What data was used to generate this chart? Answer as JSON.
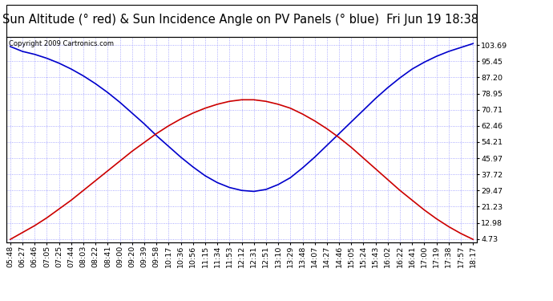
{
  "title": "Sun Altitude (° red) & Sun Incidence Angle on PV Panels (° blue)  Fri Jun 19 18:38",
  "copyright": "Copyright 2009 Cartronics.com",
  "yticks": [
    4.73,
    12.98,
    21.23,
    29.47,
    37.72,
    45.97,
    54.21,
    62.46,
    70.71,
    78.95,
    87.2,
    95.45,
    103.69
  ],
  "ymin": 3.0,
  "ymax": 108.0,
  "xtick_labels": [
    "05:48",
    "06:27",
    "06:46",
    "07:05",
    "07:25",
    "07:44",
    "08:03",
    "08:22",
    "08:41",
    "09:00",
    "09:20",
    "09:39",
    "09:58",
    "10:17",
    "10:36",
    "10:56",
    "11:15",
    "11:34",
    "11:53",
    "12:12",
    "12:31",
    "12:51",
    "13:10",
    "13:29",
    "13:48",
    "14:07",
    "14:27",
    "14:46",
    "15:05",
    "15:24",
    "15:43",
    "16:02",
    "16:22",
    "16:41",
    "17:00",
    "17:19",
    "17:38",
    "17:57",
    "18:17"
  ],
  "blue_y": [
    103.0,
    100.5,
    99.0,
    97.0,
    94.5,
    91.5,
    88.0,
    84.0,
    79.5,
    74.5,
    69.0,
    63.5,
    57.5,
    52.0,
    46.5,
    41.5,
    37.0,
    33.5,
    31.0,
    29.5,
    29.0,
    30.0,
    32.5,
    36.0,
    41.0,
    46.5,
    52.5,
    58.5,
    64.5,
    70.5,
    76.5,
    82.0,
    87.0,
    91.5,
    95.0,
    98.0,
    100.5,
    102.5,
    104.5
  ],
  "red_y": [
    4.5,
    8.0,
    11.5,
    15.5,
    20.0,
    24.5,
    29.5,
    34.5,
    39.5,
    44.5,
    49.5,
    54.0,
    58.5,
    62.5,
    66.0,
    69.0,
    71.5,
    73.5,
    75.0,
    75.8,
    75.8,
    75.0,
    73.5,
    71.5,
    68.5,
    65.0,
    61.0,
    56.5,
    51.5,
    46.0,
    40.5,
    35.0,
    29.5,
    24.5,
    19.5,
    15.0,
    11.0,
    7.5,
    4.5
  ],
  "blue_color": "#0000cc",
  "red_color": "#cc0000",
  "bg_color": "#ffffff",
  "grid_color": "#8888ff",
  "title_fontsize": 10.5,
  "tick_fontsize": 6.8,
  "copyright_fontsize": 6.0
}
